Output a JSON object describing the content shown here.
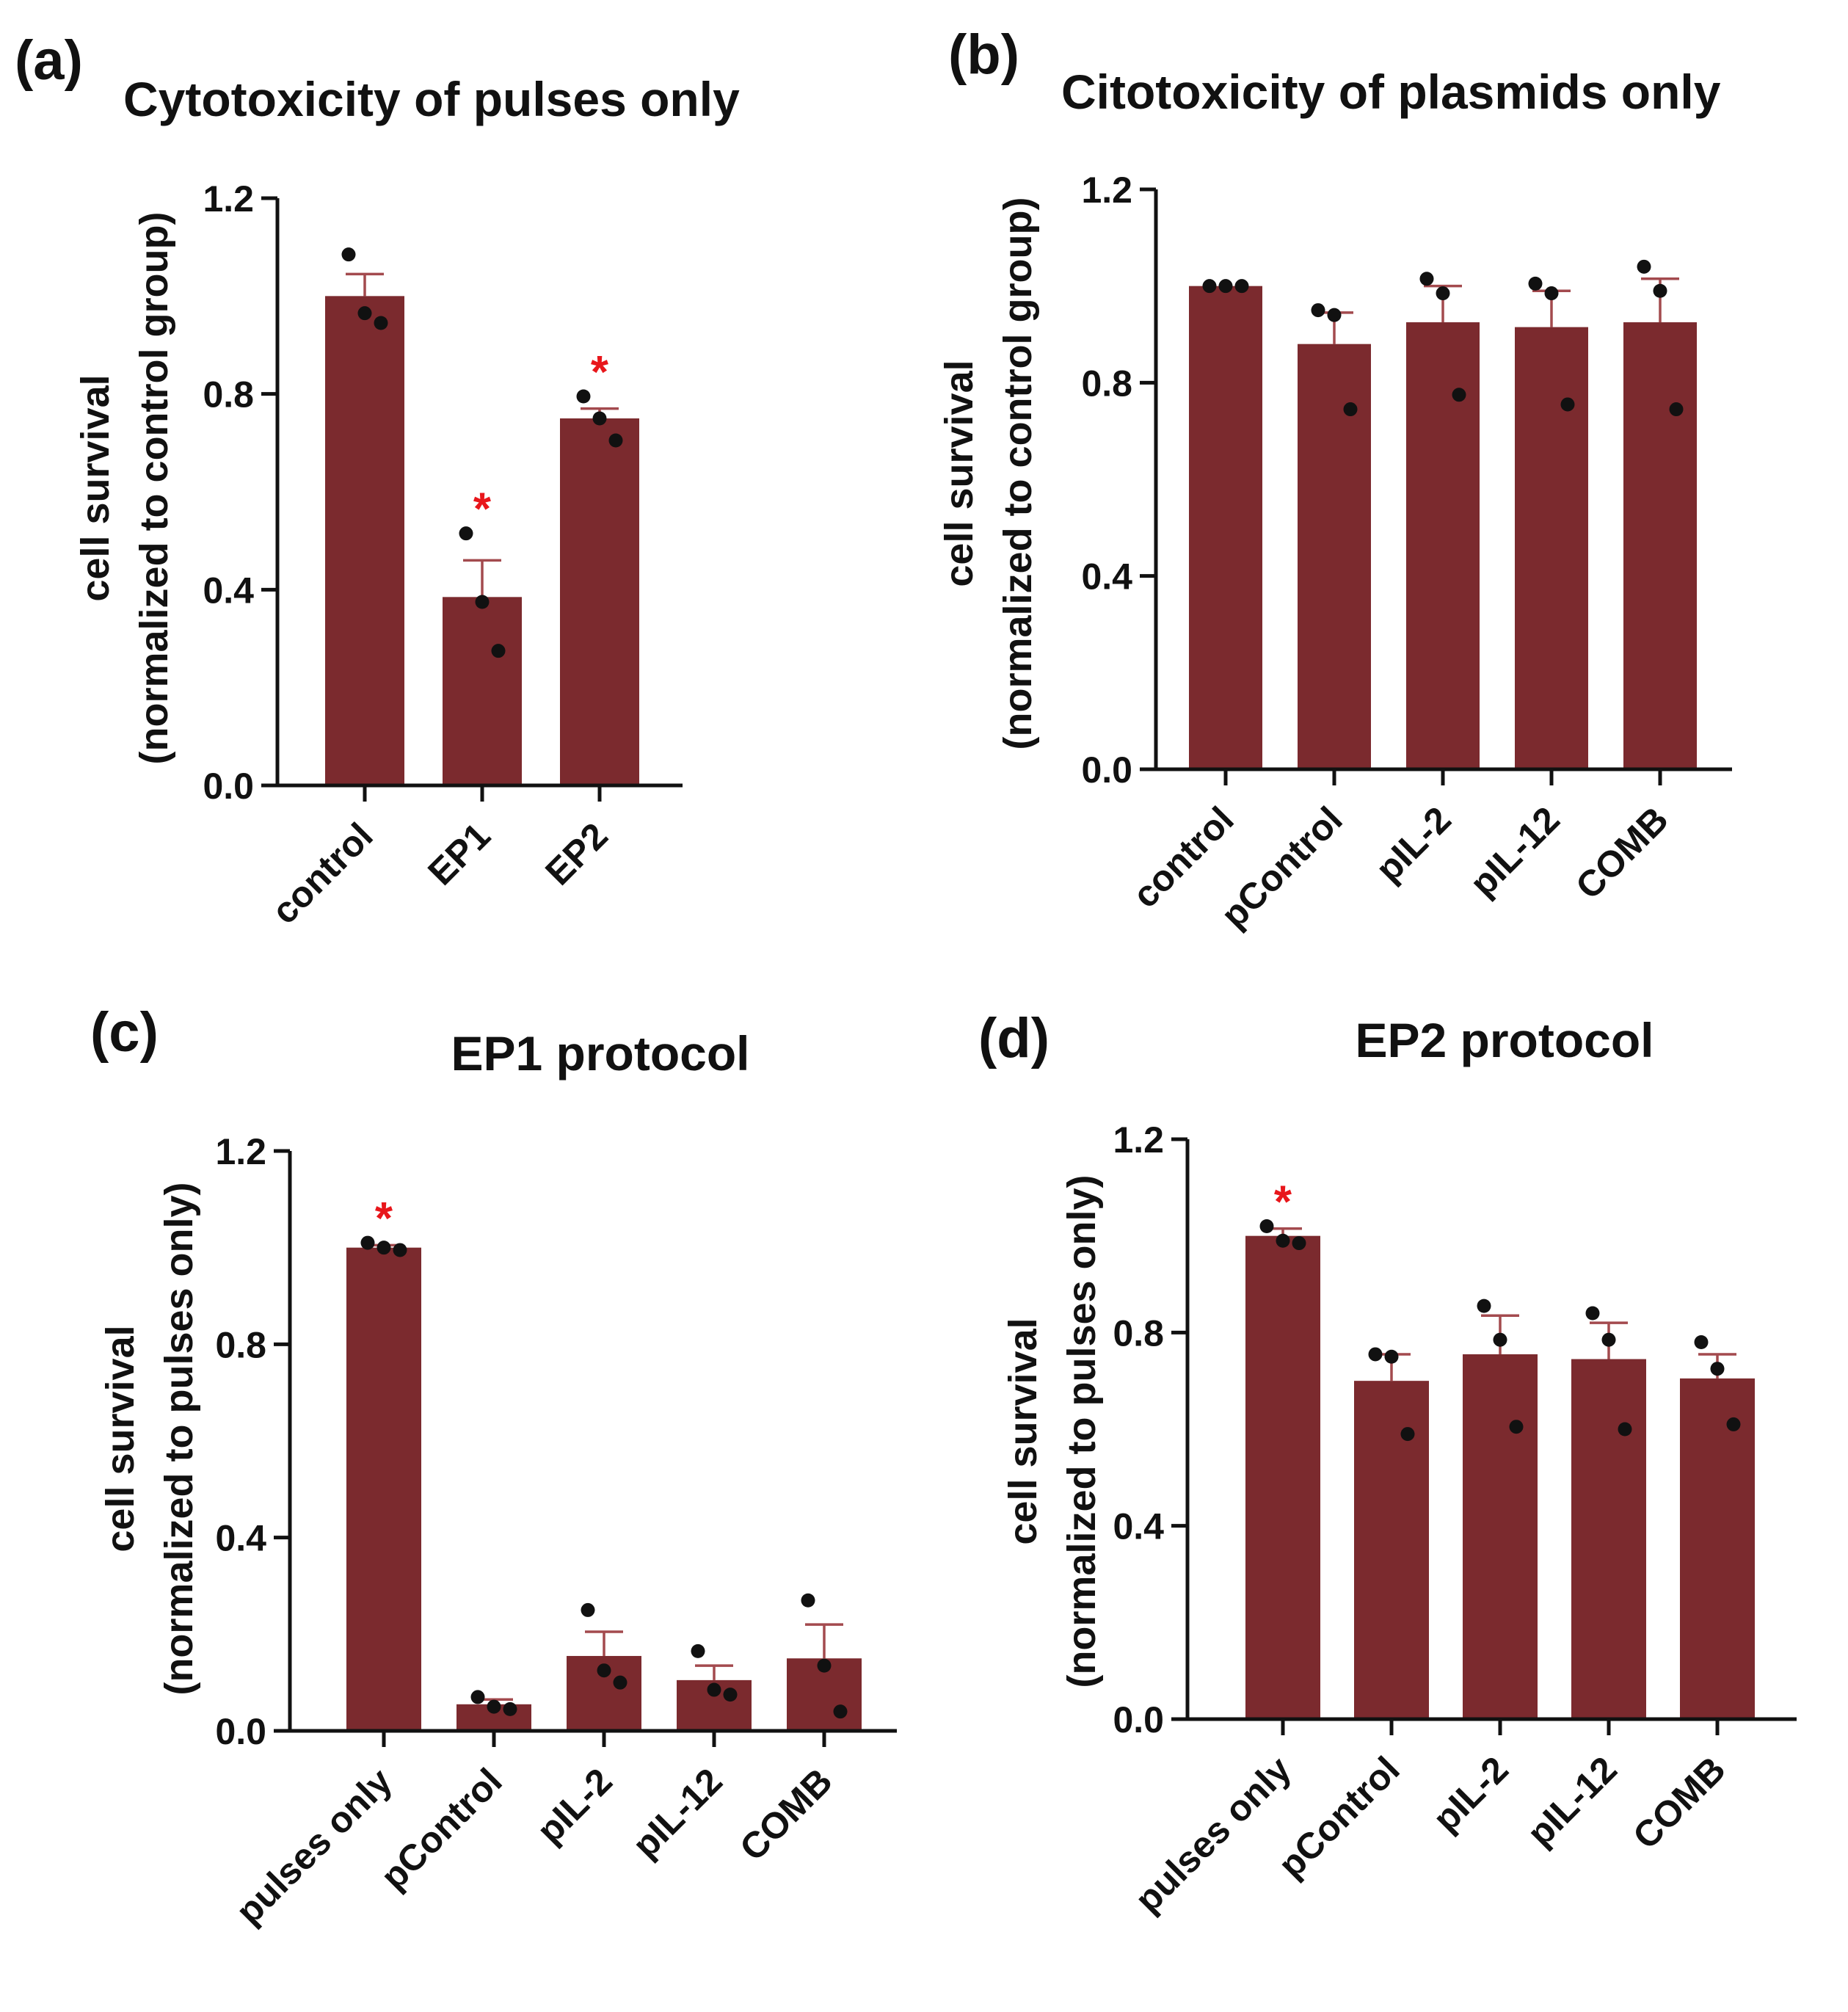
{
  "colors": {
    "bar": "#7b2a2e",
    "error": "#a34a4e",
    "axis": "#111111",
    "point": "#111111",
    "significance": "#e8161b"
  },
  "chart_data": [
    {
      "type": "bar",
      "panel_label": "(a)",
      "title": "Cytotoxicity of pulses only",
      "ylabel": "cell survival",
      "ylabel_sub": "(normalized to control group)",
      "xlabel": "",
      "ylim": [
        0,
        1.2
      ],
      "yticks": [
        "0.0",
        "0.4",
        "0.8",
        "1.2"
      ],
      "categories": [
        "control",
        "EP1",
        "EP2"
      ],
      "values": [
        1.0,
        0.385,
        0.75
      ],
      "errors": [
        0.045,
        0.075,
        0.02
      ],
      "points": [
        [
          1.085,
          0.965,
          0.945
        ],
        [
          0.515,
          0.375,
          0.275
        ],
        [
          0.795,
          0.75,
          0.705
        ]
      ],
      "significance": [
        false,
        true,
        true
      ],
      "significance_symbol": "*"
    },
    {
      "type": "bar",
      "panel_label": "(b)",
      "title": "Citotoxicity of plasmids only",
      "ylabel": "cell survival",
      "ylabel_sub": "(normalized to control group)",
      "xlabel": "",
      "ylim": [
        0,
        1.2
      ],
      "yticks": [
        "0.0",
        "0.4",
        "0.8",
        "1.2"
      ],
      "categories": [
        "control",
        "pControl",
        "pIL-2",
        "pIL-12",
        "COMB"
      ],
      "values": [
        1.0,
        0.88,
        0.925,
        0.915,
        0.925
      ],
      "errors": [
        0.0,
        0.065,
        0.075,
        0.075,
        0.09
      ],
      "points": [
        [
          1.0,
          1.0,
          1.0
        ],
        [
          0.95,
          0.94,
          0.745
        ],
        [
          1.015,
          0.985,
          0.775
        ],
        [
          1.005,
          0.985,
          0.755
        ],
        [
          1.04,
          0.99,
          0.745
        ]
      ],
      "significance": [
        false,
        false,
        false,
        false,
        false
      ],
      "significance_symbol": "*"
    },
    {
      "type": "bar",
      "panel_label": "(c)",
      "title": "EP1 protocol",
      "ylabel": "cell survival",
      "ylabel_sub": "(normalized to pulses only)",
      "xlabel": "",
      "ylim": [
        0,
        1.2
      ],
      "yticks": [
        "0.0",
        "0.4",
        "0.8",
        "1.2"
      ],
      "categories": [
        "pulses only",
        "pControl",
        "pIL-2",
        "pIL-12",
        "COMB"
      ],
      "values": [
        1.0,
        0.055,
        0.155,
        0.105,
        0.15
      ],
      "errors": [
        0.005,
        0.01,
        0.05,
        0.03,
        0.07
      ],
      "points": [
        [
          1.01,
          1.0,
          0.995
        ],
        [
          0.07,
          0.05,
          0.045
        ],
        [
          0.25,
          0.125,
          0.1
        ],
        [
          0.165,
          0.085,
          0.075
        ],
        [
          0.27,
          0.135,
          0.04
        ]
      ],
      "significance": [
        true,
        false,
        false,
        false,
        false
      ],
      "significance_symbol": "*"
    },
    {
      "type": "bar",
      "panel_label": "(d)",
      "title": "EP2 protocol",
      "ylabel": "cell survival",
      "ylabel_sub": "(normalized to pulses only)",
      "xlabel": "",
      "ylim": [
        0,
        1.2
      ],
      "yticks": [
        "0.0",
        "0.4",
        "0.8",
        "1.2"
      ],
      "categories": [
        "pulses only",
        "pControl",
        "pIL-2",
        "pIL-12",
        "COMB"
      ],
      "values": [
        1.0,
        0.7,
        0.755,
        0.745,
        0.705
      ],
      "errors": [
        0.015,
        0.055,
        0.08,
        0.075,
        0.05
      ],
      "points": [
        [
          1.02,
          0.99,
          0.985
        ],
        [
          0.755,
          0.75,
          0.59
        ],
        [
          0.855,
          0.785,
          0.605
        ],
        [
          0.84,
          0.785,
          0.6
        ],
        [
          0.78,
          0.725,
          0.61
        ]
      ],
      "significance": [
        true,
        false,
        false,
        false,
        false
      ],
      "significance_symbol": "*"
    }
  ]
}
